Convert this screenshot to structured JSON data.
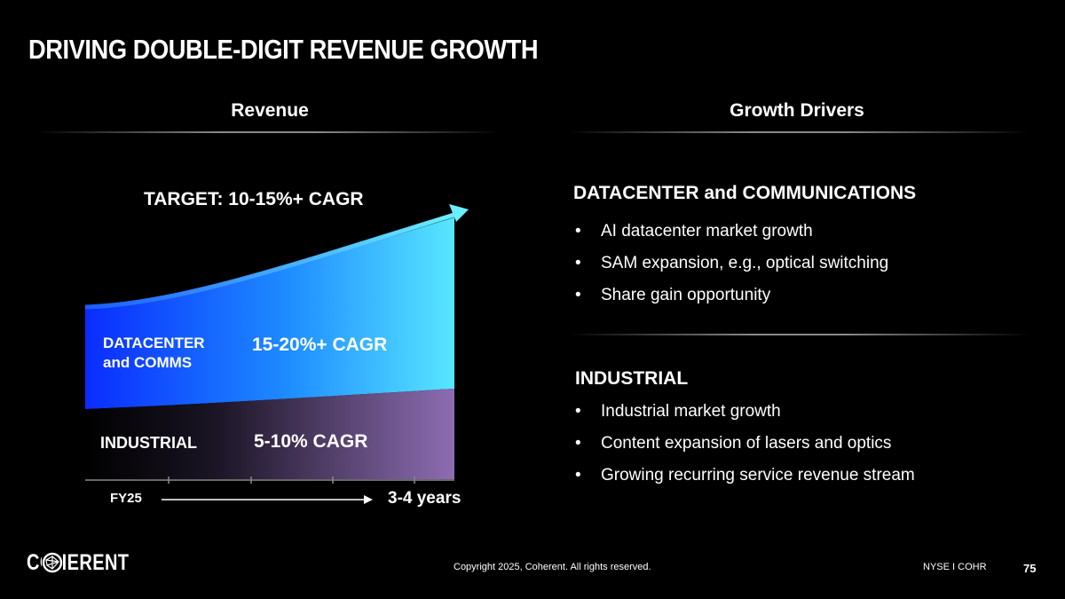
{
  "title": "DRIVING DOUBLE-DIGIT REVENUE GROWTH",
  "left": {
    "heading": "Revenue",
    "target": "TARGET: 10-15%+ CAGR",
    "segments": [
      {
        "name": "DATACENTER",
        "name2": "and COMMS",
        "cagr": "15-20%+ CAGR",
        "color_start": "#0033ff",
        "color_end": "#55e0ff"
      },
      {
        "name": "INDUSTRIAL",
        "cagr": "5-10% CAGR",
        "color_start": "#0a0a0a",
        "color_end": "#8c6cb0"
      }
    ],
    "axis": {
      "start": "FY25",
      "end": "3-4 years"
    }
  },
  "right": {
    "heading": "Growth Drivers",
    "sections": [
      {
        "title": "DATACENTER and COMMUNICATIONS",
        "bullets": [
          "AI datacenter market growth",
          "SAM expansion, e.g., optical switching",
          "Share gain opportunity"
        ]
      },
      {
        "title": "INDUSTRIAL",
        "bullets": [
          "Industrial market growth",
          "Content expansion of lasers and optics",
          "Growing recurring service revenue stream"
        ]
      }
    ]
  },
  "footer": {
    "logo": "COHERENT",
    "copyright": "Copyright 2025, Coherent. All rights reserved.",
    "ticker": "NYSE I COHR",
    "page": "75"
  }
}
